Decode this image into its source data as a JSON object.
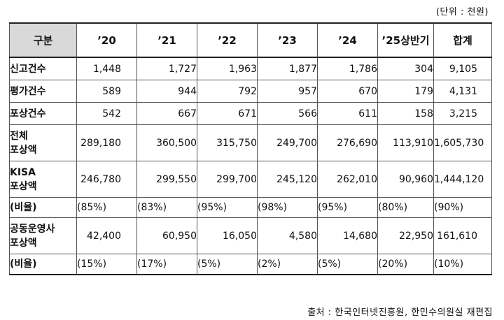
{
  "unit_note": "(단위 : 천원)",
  "headers": [
    "구분",
    "’20",
    "’21",
    "’22",
    "’23",
    "’24",
    "’25상반기",
    "합계"
  ],
  "rows": [
    {
      "label": [
        "신고건수"
      ],
      "cells": [
        "1,448",
        "1,727",
        "1,963",
        "1,877",
        "1,786",
        "304",
        "9,105"
      ],
      "kind": "count"
    },
    {
      "label": [
        "평가건수"
      ],
      "cells": [
        "589",
        "944",
        "792",
        "957",
        "670",
        "179",
        "4,131"
      ],
      "kind": "count"
    },
    {
      "label": [
        "포상건수"
      ],
      "cells": [
        "542",
        "667",
        "671",
        "566",
        "611",
        "158",
        "3,215"
      ],
      "kind": "count"
    },
    {
      "label": [
        "전체",
        "포상액"
      ],
      "cells": [
        "289,180",
        "360,500",
        "315,750",
        "249,700",
        "276,690",
        "113,910",
        "1,605,730"
      ],
      "kind": "amount"
    },
    {
      "label": [
        "KISA",
        "포상액"
      ],
      "cells": [
        "246,780",
        "299,550",
        "299,700",
        "245,120",
        "262,010",
        "90,960",
        "1,444,120"
      ],
      "kind": "amount"
    },
    {
      "label": [
        "(비율)"
      ],
      "cells": [
        "(85%)",
        "(83%)",
        "(95%)",
        "(98%)",
        "(95%)",
        "(80%)",
        "(90%)"
      ],
      "kind": "ratio"
    },
    {
      "label": [
        "공동운영사",
        "포상액"
      ],
      "cells": [
        "42,400",
        "60,950",
        "16,050",
        "4,580",
        "14,680",
        "22,950",
        "161,610"
      ],
      "kind": "amount"
    },
    {
      "label": [
        "(비율)"
      ],
      "cells": [
        "(15%)",
        "(17%)",
        "(5%)",
        "(2%)",
        "(5%)",
        "(20%)",
        "(10%)"
      ],
      "kind": "ratio"
    }
  ],
  "source_note": "출처 : 한국인터넷진흥원, 한민수의원실 재편집"
}
